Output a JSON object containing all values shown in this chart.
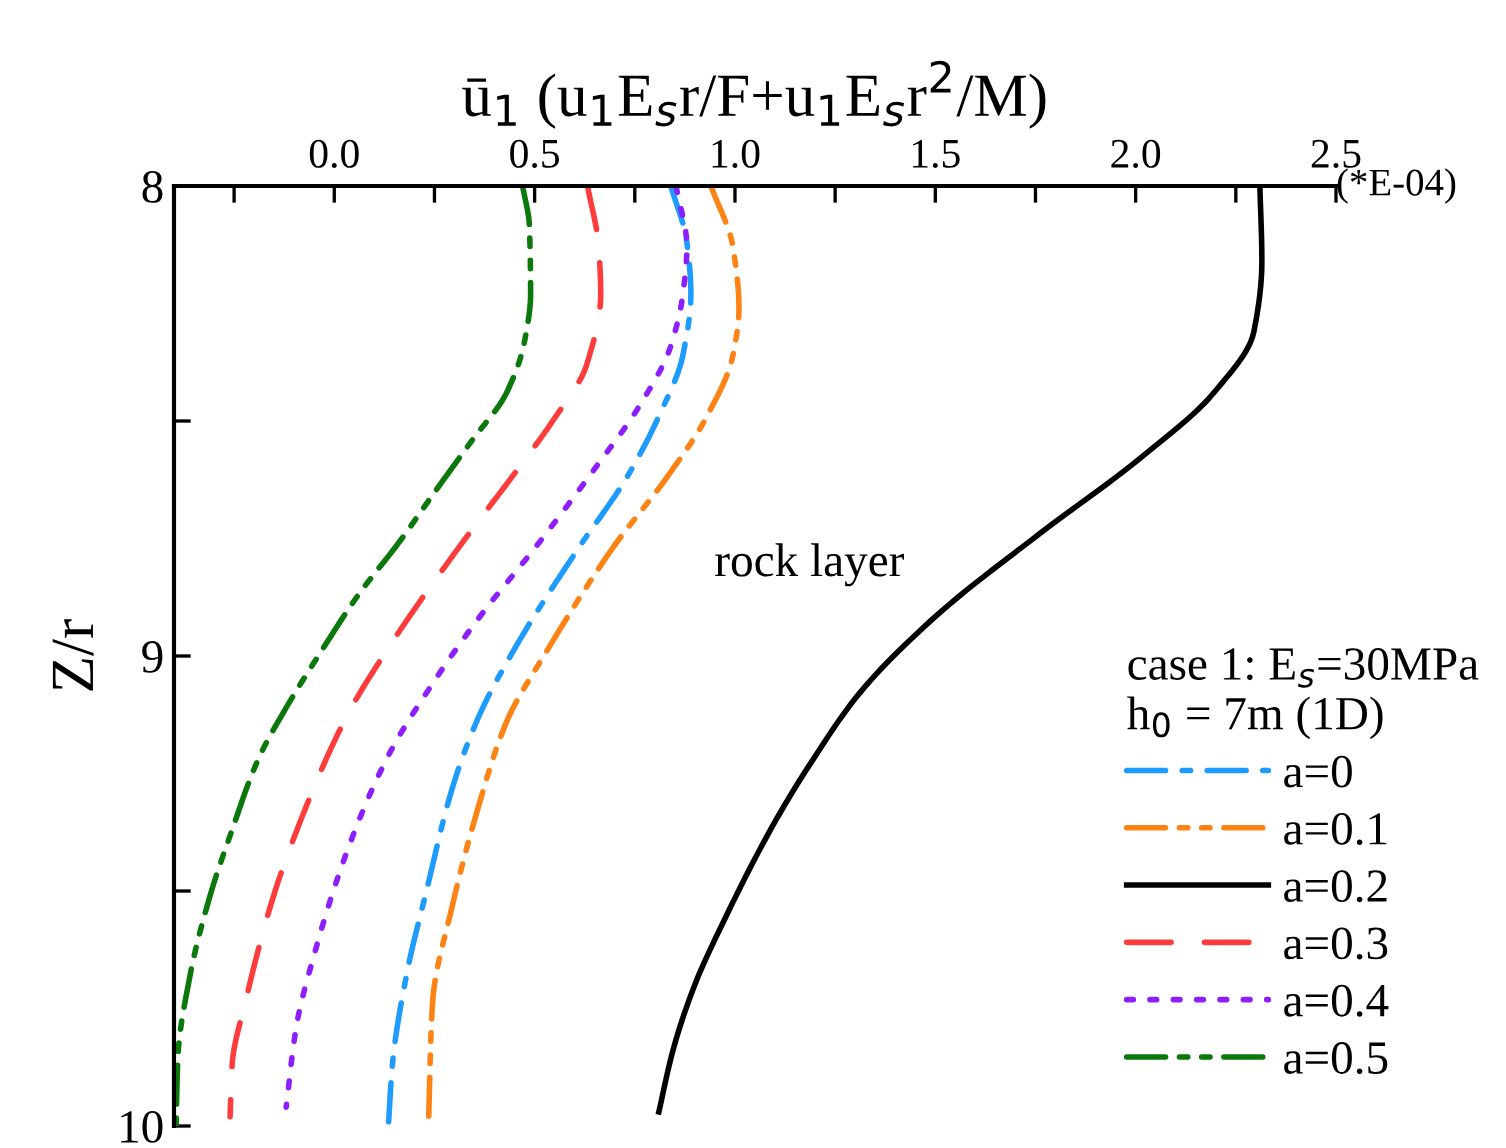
{
  "chart_data": {
    "type": "line",
    "xlabel": "ū$_{1}$ (u$_{1}$E$_{s}$r/F+u$_{1}$E$_{s}$r$^{2}$/M)",
    "ylabel": "Z/r",
    "legend_title": "case 1: E$_{s}$=30MPa\nh$_{0}$ = 7m (1D)",
    "legend": "bottom right",
    "grid": false,
    "xlim": [
      -0.4,
      2.5
    ],
    "ylim": [
      10,
      8
    ],
    "xticks": [
      {
        "value": -0.25,
        "label": null
      },
      {
        "value": 0,
        "label": "0.0"
      },
      {
        "value": 0.25,
        "label": null
      },
      {
        "value": 0.5,
        "label": "0.5"
      },
      {
        "value": 0.75,
        "label": null
      },
      {
        "value": 1,
        "label": "1.0"
      },
      {
        "value": 1.25,
        "label": null
      },
      {
        "value": 1.5,
        "label": "1.5"
      },
      {
        "value": 1.75,
        "label": null
      },
      {
        "value": 2,
        "label": "2.0"
      },
      {
        "value": 2.25,
        "label": null
      },
      {
        "value": 2.5,
        "label": "2.5"
      }
    ],
    "yticks": [
      8,
      {
        "value": 8.5,
        "label": null
      },
      9,
      {
        "value": 9.5,
        "label": null
      },
      10
    ],
    "annotations": [
      "rock layer",
      "(*E-04)"
    ],
    "series": [
      {
        "name": "a=0",
        "color": "#1e9bff",
        "line_style": "dashdot",
        "x": [
          0.84,
          0.88,
          0.89,
          0.87,
          0.81,
          0.73,
          0.61,
          0.46,
          0.36,
          0.295,
          0.23,
          0.18,
          0.145,
          0.135
        ],
        "values": [
          8.0,
          8.12,
          8.23,
          8.36,
          8.49,
          8.62,
          8.77,
          8.97,
          9.13,
          9.28,
          9.5,
          9.68,
          9.87,
          10.0
        ]
      },
      {
        "name": "a=0.1",
        "color": "#ff8214",
        "line_style": "dashdotdot",
        "x": [
          0.94,
          0.995,
          1.01,
          0.995,
          0.93,
          0.83,
          0.695,
          0.53,
          0.43,
          0.36,
          0.295,
          0.245,
          0.235
        ],
        "values": [
          8.0,
          8.13,
          8.26,
          8.36,
          8.49,
          8.62,
          8.77,
          8.99,
          9.14,
          9.32,
          9.53,
          9.74,
          10.0
        ]
      },
      {
        "name": "a=0.2",
        "color": "#000000",
        "line_style": "solid",
        "x": [
          2.31,
          2.315,
          2.295,
          2.195,
          2.01,
          1.76,
          1.495,
          1.31,
          1.195,
          1.095,
          0.98,
          0.895,
          0.845,
          0.81
        ],
        "values": [
          8.0,
          8.16,
          8.31,
          8.44,
          8.58,
          8.74,
          8.92,
          9.08,
          9.22,
          9.36,
          9.55,
          9.71,
          9.84,
          9.97
        ]
      },
      {
        "name": "a=0.3",
        "color": "#ff3c3c",
        "line_style": "dashed",
        "x": [
          0.632,
          0.66,
          0.665,
          0.63,
          0.545,
          0.46,
          0.31,
          0.145,
          0.03,
          -0.07,
          -0.155,
          -0.22,
          -0.255,
          -0.26
        ],
        "values": [
          8.0,
          8.13,
          8.23,
          8.38,
          8.5,
          8.6,
          8.77,
          8.97,
          9.13,
          9.32,
          9.52,
          9.73,
          9.87,
          9.98
        ]
      },
      {
        "name": "a=0.4",
        "color": "#8c1eff",
        "line_style": "dotted",
        "x": [
          0.853,
          0.88,
          0.87,
          0.84,
          0.76,
          0.66,
          0.51,
          0.36,
          0.26,
          0.13,
          0.03,
          -0.045,
          -0.095,
          -0.12
        ],
        "values": [
          8.0,
          8.13,
          8.23,
          8.34,
          8.47,
          8.59,
          8.76,
          8.92,
          9.04,
          9.22,
          9.42,
          9.62,
          9.79,
          9.96
        ]
      },
      {
        "name": "a=0.5",
        "color": "#0a780a",
        "line_style": "dashdotdot",
        "x": [
          0.47,
          0.487,
          0.49,
          0.475,
          0.43,
          0.345,
          0.26,
          0.16,
          0.06,
          -0.04,
          -0.12,
          -0.19,
          -0.255,
          -0.31,
          -0.36,
          -0.39,
          -0.395
        ],
        "values": [
          8.0,
          8.085,
          8.23,
          8.33,
          8.44,
          8.54,
          8.64,
          8.76,
          8.87,
          9.0,
          9.11,
          9.22,
          9.37,
          9.51,
          9.68,
          9.85,
          10.0
        ]
      }
    ]
  }
}
